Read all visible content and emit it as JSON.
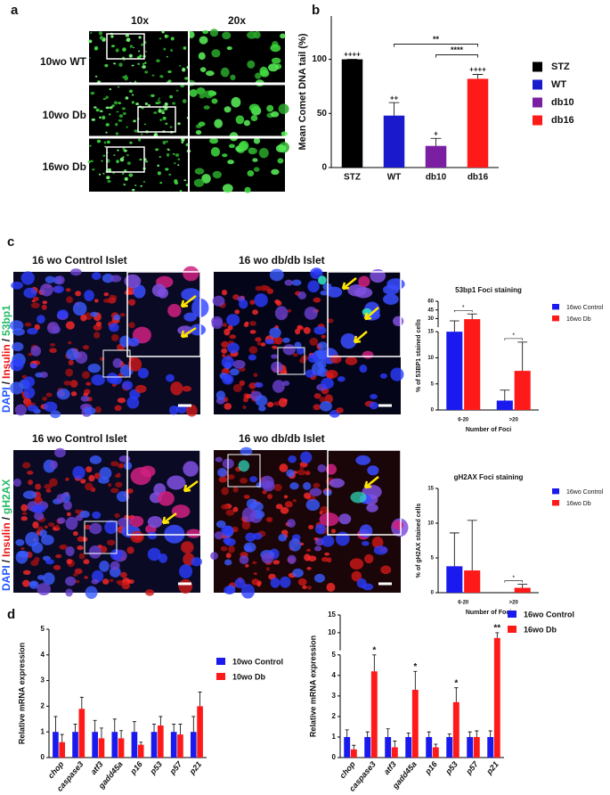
{
  "figure": {
    "panel_labels": [
      "a",
      "b",
      "c",
      "d"
    ],
    "comet_columns": [
      "10x",
      "20x"
    ],
    "comet_rows": [
      "10wo WT",
      "10wo Db",
      "16wo Db"
    ],
    "islet_titles": [
      "16 wo Control  Islet",
      "16 wo db/db Islet",
      "16 wo Control Islet",
      "16 wo db/db Islet"
    ],
    "stain_53bp1": [
      "DAPI",
      "/",
      "Insulin",
      "/",
      "53bp1"
    ],
    "stain_gh2ax": [
      "DAPI",
      "/",
      "Insulin",
      "/",
      "gH2AX"
    ]
  },
  "chart_data": [
    {
      "type": "bar",
      "y_label": "Mean Comet DNA tail (%)",
      "categories": [
        "STZ",
        "WT",
        "db10",
        "db16"
      ],
      "values": [
        100,
        48,
        20,
        82
      ],
      "errors": [
        0,
        12,
        7,
        4
      ],
      "colors": [
        "#000000",
        "#1a1acc",
        "#7b1fa2",
        "#ff1a1a"
      ],
      "ylim": [
        0,
        140
      ],
      "yticks": [
        0,
        50,
        100
      ],
      "annotations": [
        {
          "text": "++++",
          "category": "STZ"
        },
        {
          "text": "++",
          "category": "WT"
        },
        {
          "text": "+",
          "category": "db10"
        },
        {
          "text": "++++",
          "category": "db16"
        },
        {
          "text": "**",
          "from": "WT",
          "to": "db16"
        },
        {
          "text": "****",
          "from": "db10",
          "to": "db16"
        }
      ]
    },
    {
      "type": "grouped_bar",
      "title": "53bp1 Foci staining",
      "y_label": "% of 53BP1 stained cells",
      "x_label": "Number of Foci",
      "categories": [
        "6-20",
        ">20"
      ],
      "series": [
        {
          "name": "16wo Control",
          "color": "#1a1aee",
          "values": [
            15,
            1.8
          ],
          "errors": [
            11,
            2
          ]
        },
        {
          "name": "16wo Db",
          "color": "#ff1a1a",
          "values": [
            29,
            7.5
          ],
          "errors": [
            9,
            5.5
          ]
        }
      ],
      "ylim": [
        0,
        60
      ],
      "yticks": [
        0,
        5,
        10,
        15,
        30,
        45,
        60
      ],
      "axis_break": 15,
      "annotations": [
        {
          "text": "*",
          "category": "6-20",
          "from": "16wo Control",
          "to": "16wo Db"
        },
        {
          "text": "*",
          "category": ">20",
          "from": "16wo Control",
          "to": "16wo Db"
        }
      ]
    },
    {
      "type": "grouped_bar",
      "title": "gH2AX Foci staining",
      "y_label": "% of gH2AX stained cells",
      "x_label": "Number of Foci",
      "categories": [
        "6-20",
        ">20"
      ],
      "series": [
        {
          "name": "16wo Control",
          "color": "#1a1aee",
          "values": [
            3.8,
            0
          ],
          "errors": [
            4.8,
            0
          ]
        },
        {
          "name": "16wo Db",
          "color": "#ff1a1a",
          "values": [
            3.2,
            0.7
          ],
          "errors": [
            7.2,
            0.5
          ]
        }
      ],
      "ylim": [
        0,
        15
      ],
      "yticks": [
        0,
        5,
        10,
        15
      ],
      "annotations": [
        {
          "text": "*",
          "category": ">20",
          "from": "16wo Control",
          "to": "16wo Db"
        }
      ]
    },
    {
      "type": "grouped_bar",
      "y_label": "Relative mRNA expression",
      "category_style": "italic",
      "categories": [
        "chop",
        "caspase3",
        "atf3",
        "gadd45a",
        "p16",
        "p53",
        "p57",
        "p21"
      ],
      "series": [
        {
          "name": "10wo Control",
          "color": "#1a1aee",
          "values": [
            1,
            1,
            1,
            1,
            1,
            1,
            1,
            1
          ],
          "errors": [
            0.6,
            0.3,
            0.45,
            0.5,
            0.4,
            0.3,
            0.3,
            0.6
          ]
        },
        {
          "name": "10wo Db",
          "color": "#ff1a1a",
          "values": [
            0.6,
            1.9,
            0.75,
            0.75,
            0.5,
            1.25,
            0.9,
            2.0
          ],
          "errors": [
            0.3,
            0.45,
            0.4,
            0.3,
            0.1,
            0.35,
            0.4,
            0.55
          ]
        }
      ],
      "ylim": [
        0,
        5
      ],
      "yticks": [
        0,
        1,
        2,
        3,
        4,
        5
      ]
    },
    {
      "type": "grouped_bar",
      "y_label": "Relative mRNA expression",
      "category_style": "italic",
      "categories": [
        "chop",
        "caspase3",
        "atf3",
        "gadd45a",
        "p16",
        "p53",
        "p57",
        "p21"
      ],
      "series": [
        {
          "name": "16wo Control",
          "color": "#1a1aee",
          "values": [
            1,
            1,
            1,
            1,
            1,
            1,
            1,
            1
          ],
          "errors": [
            0.35,
            0.25,
            0.4,
            0.2,
            0.25,
            0.15,
            0.25,
            0.3
          ]
        },
        {
          "name": "16wo Db",
          "color": "#ff1a1a",
          "values": [
            0.4,
            4.2,
            0.5,
            3.3,
            0.5,
            2.7,
            1.0,
            8.5
          ],
          "errors": [
            0.2,
            0.8,
            0.3,
            0.9,
            0.15,
            0.7,
            0.3,
            1.5
          ]
        }
      ],
      "ylim": [
        0,
        15
      ],
      "yticks": [
        0,
        1,
        2,
        3,
        4,
        5,
        10,
        15
      ],
      "axis_break": 5,
      "annotations": [
        {
          "text": "*",
          "category": "caspase3",
          "series": "16wo Db"
        },
        {
          "text": "*",
          "category": "gadd45a",
          "series": "16wo Db"
        },
        {
          "text": "*",
          "category": "p53",
          "series": "16wo Db"
        },
        {
          "text": "**",
          "category": "p21",
          "series": "16wo Db"
        }
      ]
    }
  ]
}
